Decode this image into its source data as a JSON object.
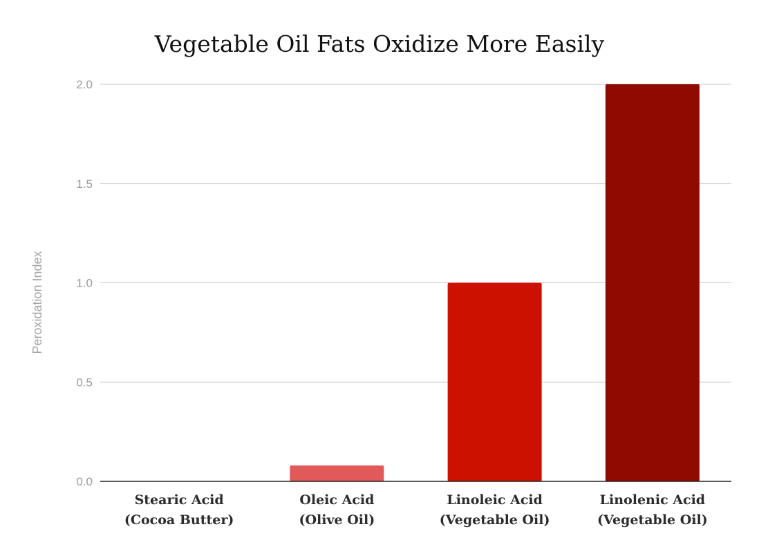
{
  "chart_data": {
    "type": "bar",
    "title": "Vegetable Oil Fats Oxidize More Easily",
    "xlabel": "",
    "ylabel": "Peroxidation Index",
    "ylim": [
      0,
      2
    ],
    "y_ticks": [
      "0.0",
      "0.5",
      "1.0",
      "1.5",
      "2.0"
    ],
    "y_tick_values": [
      0,
      0.5,
      1,
      1.5,
      2
    ],
    "grid": true,
    "categories": [
      [
        "Stearic Acid",
        "(Cocoa Butter)"
      ],
      [
        "Oleic Acid",
        "(Olive Oil)"
      ],
      [
        "Linoleic Acid",
        "(Vegetable Oil)"
      ],
      [
        "Linolenic Acid",
        "(Vegetable Oil)"
      ]
    ],
    "values": [
      0,
      0.08,
      1.0,
      2.0
    ],
    "colors": [
      "#e05a5a",
      "#e05a5a",
      "#cc1100",
      "#8f0a00"
    ]
  }
}
